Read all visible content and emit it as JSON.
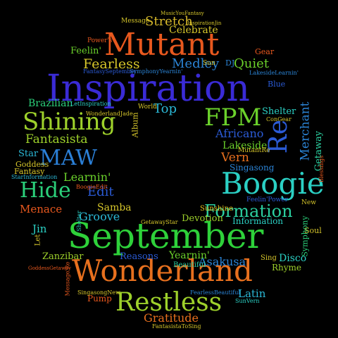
{
  "words": [
    {
      "text": "Inspiration",
      "color": "#3a2bd6",
      "rot": 0
    },
    {
      "text": "September",
      "color": "#2ed13a",
      "rot": 0
    },
    {
      "text": "Wonderland",
      "color": "#e8701e",
      "rot": 0
    },
    {
      "text": "Mutant",
      "color": "#e8581e",
      "rot": 0
    },
    {
      "text": "Boogie",
      "color": "#2bd0c4",
      "rot": 0
    },
    {
      "text": "Shining",
      "color": "#9ed12b",
      "rot": 0
    },
    {
      "text": "Restless",
      "color": "#9ed12b",
      "rot": 0
    },
    {
      "text": "FPM",
      "color": "#6bd12b",
      "rot": 0
    },
    {
      "text": "MAW",
      "color": "#2b7fd6",
      "rot": 0
    },
    {
      "text": "Re",
      "color": "#2b5bd6",
      "rot": -90
    },
    {
      "text": "Hide",
      "color": "#2bd07a",
      "rot": 0
    },
    {
      "text": "Formation",
      "color": "#2bd0a0",
      "rot": 0
    },
    {
      "text": "Stretch",
      "color": "#d6b82b",
      "rot": 0
    },
    {
      "text": "Fearless",
      "color": "#d6c62b",
      "rot": 0
    },
    {
      "text": "Medley",
      "color": "#2b84d6",
      "rot": 0
    },
    {
      "text": "Quiet",
      "color": "#6bd12b",
      "rot": 0
    },
    {
      "text": "Fantasista",
      "color": "#9ed12b",
      "rot": 0
    },
    {
      "text": "Top",
      "color": "#2bb8d6",
      "rot": 0
    },
    {
      "text": "Africano",
      "color": "#2b5bd6",
      "rot": 0
    },
    {
      "text": "Merchant",
      "color": "#2b84d6",
      "rot": -90
    },
    {
      "text": "Lakeside",
      "color": "#6bd12b",
      "rot": 0
    },
    {
      "text": "Vern",
      "color": "#e8701e",
      "rot": 0
    },
    {
      "text": "Learnin'",
      "color": "#6bd12b",
      "rot": 0
    },
    {
      "text": "Edit",
      "color": "#2b5bd6",
      "rot": 0
    },
    {
      "text": "Menace",
      "color": "#e8581e",
      "rot": 0
    },
    {
      "text": "Groove",
      "color": "#2bb8d6",
      "rot": 0
    },
    {
      "text": "Samba",
      "color": "#d6c62b",
      "rot": 0
    },
    {
      "text": "Asakusa",
      "color": "#2b84d6",
      "rot": 0
    },
    {
      "text": "Devotion",
      "color": "#9ed12b",
      "rot": 0
    },
    {
      "text": "Yearnin'",
      "color": "#6bd12b",
      "rot": 0
    },
    {
      "text": "Latin",
      "color": "#2bb8d6",
      "rot": 0
    },
    {
      "text": "Gratitude",
      "color": "#e8701e",
      "rot": 0
    },
    {
      "text": "Celebrate",
      "color": "#d6c62b",
      "rot": 0
    },
    {
      "text": "Shelter",
      "color": "#2bd0c4",
      "rot": 0
    },
    {
      "text": "Brazilian",
      "color": "#2bd07a",
      "rot": 0
    },
    {
      "text": "Zanzibar",
      "color": "#9ed12b",
      "rot": 0
    },
    {
      "text": "Jin",
      "color": "#2bd0c4",
      "rot": 0
    },
    {
      "text": "Reasons",
      "color": "#2b5bd6",
      "rot": 0
    },
    {
      "text": "Disco",
      "color": "#2bd0c4",
      "rot": 0
    },
    {
      "text": "Information",
      "color": "#2bd0c4",
      "rot": 0
    },
    {
      "text": "Singasong",
      "color": "#2b84d6",
      "rot": 0
    },
    {
      "text": "Star",
      "color": "#2bb8d6",
      "rot": 0
    },
    {
      "text": "Rhyme",
      "color": "#9ed12b",
      "rot": 0
    },
    {
      "text": "Getaway",
      "color": "#2bd0a0",
      "rot": -90
    },
    {
      "text": "Feelin'",
      "color": "#6bd12b",
      "rot": 0
    },
    {
      "text": "Pump",
      "color": "#e8581e",
      "rot": 0
    },
    {
      "text": "Gear",
      "color": "#e8581e",
      "rot": 0
    },
    {
      "text": "Blue",
      "color": "#2b5bd6",
      "rot": 0
    },
    {
      "text": "Sunshine",
      "color": "#e8c61e",
      "rot": 0
    },
    {
      "text": "Goddess",
      "color": "#d6c62b",
      "rot": 0
    },
    {
      "text": "Fantasy",
      "color": "#d6c62b",
      "rot": 0
    },
    {
      "text": "Soul",
      "color": "#d6c62b",
      "rot": 0
    },
    {
      "text": "Sing",
      "color": "#d6c62b",
      "rot": 0
    },
    {
      "text": "Symphony",
      "color": "#2bd07a",
      "rot": -90
    },
    {
      "text": "Album",
      "color": "#d6c62b",
      "rot": -90
    },
    {
      "text": "DJ",
      "color": "#2b84d6",
      "rot": 0
    },
    {
      "text": "World",
      "color": "#d6c62b",
      "rot": 0
    },
    {
      "text": "Let",
      "color": "#d6c62b",
      "rot": -90
    },
    {
      "text": "Sun",
      "color": "#d6c62b",
      "rot": 0
    },
    {
      "text": "New",
      "color": "#d6c62b",
      "rot": 0
    },
    {
      "text": "Message",
      "color": "#d6c62b",
      "rot": 0
    },
    {
      "text": "Power's",
      "color": "#e8581e",
      "rot": 0
    },
    {
      "text": "Beautiful",
      "color": "#2bd0a0",
      "rot": 0
    },
    {
      "text": "MutantRe",
      "color": "#d6c62b",
      "rot": 0
    },
    {
      "text": "Feelin'Power",
      "color": "#2b5bd6",
      "rot": 0
    },
    {
      "text": "LetInspiration",
      "color": "#2bd0c4",
      "rot": 0
    },
    {
      "text": "WonderlandJade",
      "color": "#d6c62b",
      "rot": 0
    },
    {
      "text": "SymphonyYearnin'",
      "color": "#2b84d6",
      "rot": 0
    },
    {
      "text": "FantasySeptember",
      "color": "#2b5bd6",
      "rot": 0
    },
    {
      "text": "LakesideLearnin'",
      "color": "#2b84d6",
      "rot": 0
    },
    {
      "text": "SingasongNew",
      "color": "#d6c62b",
      "rot": 0
    },
    {
      "text": "FearlessBeautiful",
      "color": "#2b84d6",
      "rot": 0
    },
    {
      "text": "SunVern",
      "color": "#2bd0c4",
      "rot": 0
    },
    {
      "text": "FantasistaToSing",
      "color": "#d6c62b",
      "rot": 0
    },
    {
      "text": "GetawayStar",
      "color": "#d6c62b",
      "rot": 0
    },
    {
      "text": "BoogieEdit",
      "color": "#e8581e",
      "rot": 0
    },
    {
      "text": "ConGear",
      "color": "#d6c62b",
      "rot": 0
    },
    {
      "text": "StarInformation",
      "color": "#2bb8d6",
      "rot": 0
    },
    {
      "text": "Message'Re",
      "color": "#e8581e",
      "rot": -90
    },
    {
      "text": "Shelter",
      "color": "#2bd0c4",
      "rot": -90
    },
    {
      "text": "Blessings",
      "color": "#e8581e",
      "rot": -90
    },
    {
      "text": "GoddessGetaway",
      "color": "#e8581e",
      "rot": 0
    },
    {
      "text": "MusicYouFantasy",
      "color": "#d6c62b",
      "rot": 0
    },
    {
      "text": "InspirationJin",
      "color": "#d6c62b",
      "rot": 0
    }
  ]
}
